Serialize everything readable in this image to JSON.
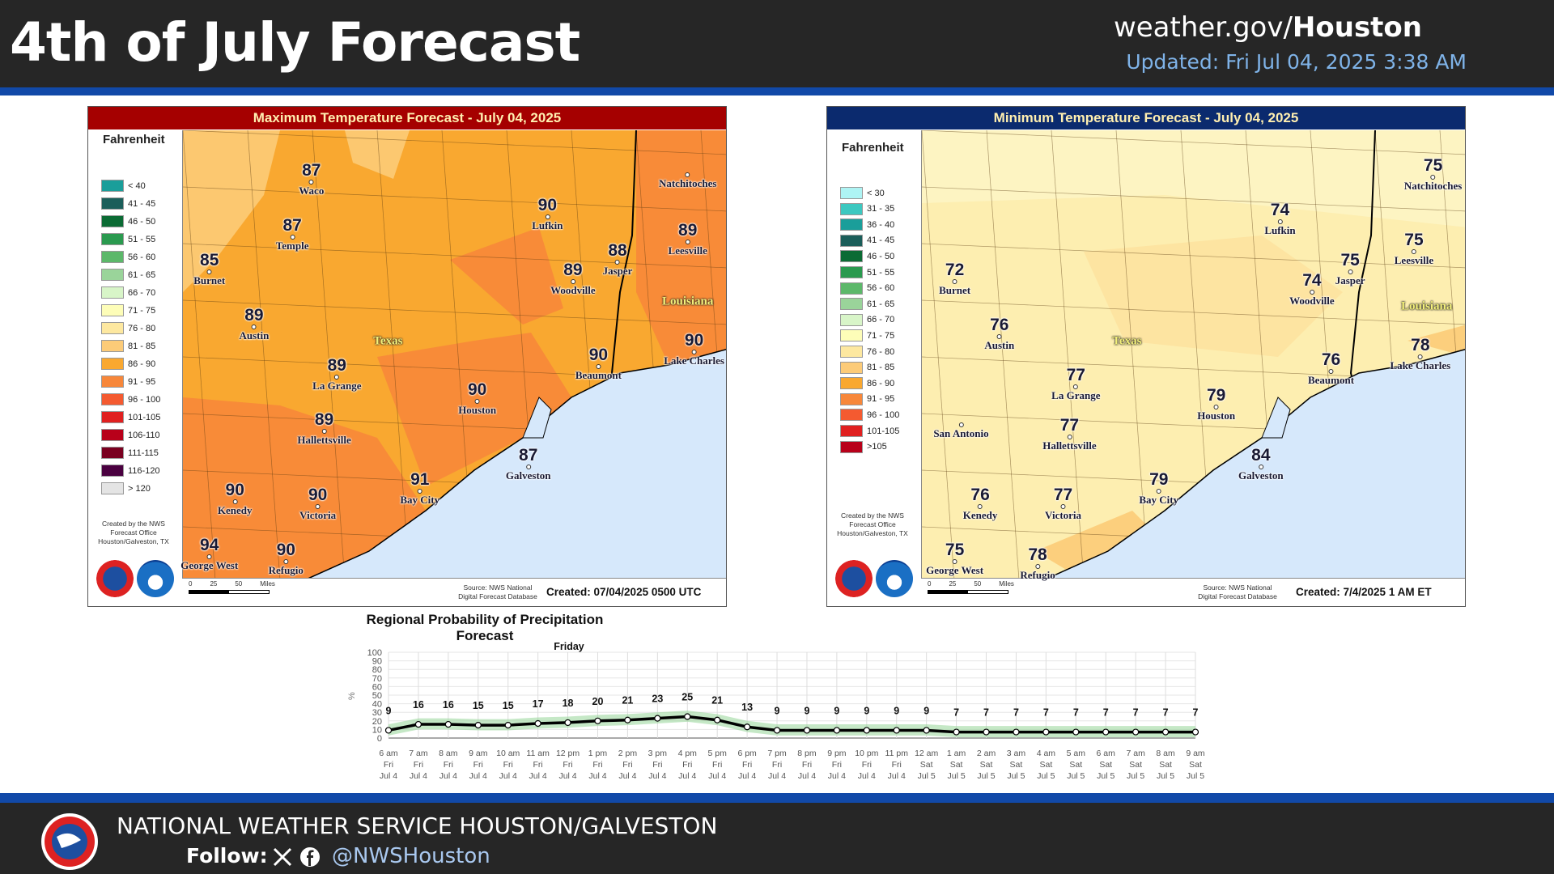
{
  "header": {
    "title": "4th of July Forecast",
    "site_prefix": "weather.gov/",
    "site_office": "Houston",
    "updated": "Updated: Fri Jul 04, 2025 3:38 AM"
  },
  "max_map": {
    "title": "Maximum Temperature Forecast - July 04, 2025",
    "header_color": "#a50000",
    "legend_title": "Fahrenheit",
    "legend": [
      [
        "< 40",
        "#1a9e9a"
      ],
      [
        "41 - 45",
        "#1b5e5a"
      ],
      [
        "46 - 50",
        "#0b6b34"
      ],
      [
        "51 - 55",
        "#2a9a4f"
      ],
      [
        "56 - 60",
        "#5cb86a"
      ],
      [
        "61 - 65",
        "#9ad49a"
      ],
      [
        "66 - 70",
        "#d8f5c8"
      ],
      [
        "71 - 75",
        "#fdfdb8"
      ],
      [
        "76 - 80",
        "#fde8a0"
      ],
      [
        "81 - 85",
        "#fccb78"
      ],
      [
        "86 - 90",
        "#f9a830"
      ],
      [
        "91 - 95",
        "#f7873a"
      ],
      [
        "96 - 100",
        "#f45a30"
      ],
      [
        "101-105",
        "#e02020"
      ],
      [
        "106-110",
        "#b8001a"
      ],
      [
        "111-115",
        "#7a0020"
      ],
      [
        "116-120",
        "#4a0040"
      ],
      [
        "> 120",
        "#e4e4e4"
      ]
    ],
    "credit": "Created by the NWS Forecast Office Houston/Galveston, TX",
    "cities": [
      [
        "Waco",
        "87"
      ],
      [
        "Temple",
        "87"
      ],
      [
        "Burnet",
        "85"
      ],
      [
        "Austin",
        "89"
      ],
      [
        "La Grange",
        "89"
      ],
      [
        "Hallettsville",
        "89"
      ],
      [
        "Kenedy",
        "90"
      ],
      [
        "Victoria",
        "90"
      ],
      [
        "George West",
        "94"
      ],
      [
        "Refugio",
        "90"
      ],
      [
        "Bay City",
        "91"
      ],
      [
        "Galveston",
        "87"
      ],
      [
        "Houston",
        "90"
      ],
      [
        "Beaumont",
        "90"
      ],
      [
        "Lake Charles",
        "90"
      ],
      [
        "Woodville",
        "89"
      ],
      [
        "Jasper",
        "88"
      ],
      [
        "Lufkin",
        "90"
      ],
      [
        "Leesville",
        "89"
      ],
      [
        "Natchitoches",
        ""
      ]
    ],
    "states": [
      "Texas",
      "Louisiana"
    ],
    "scale": [
      "0",
      "25",
      "50",
      "Miles"
    ],
    "source": "Source: NWS National Digital Forecast Database",
    "created": "Created: 07/04/2025 0500 UTC"
  },
  "min_map": {
    "title": "Minimum Temperature Forecast - July 04, 2025",
    "header_color": "#0b2a6e",
    "legend_title": "Fahrenheit",
    "legend": [
      [
        "< 30",
        "#aef4f4"
      ],
      [
        "31 - 35",
        "#3cc8c0"
      ],
      [
        "36 - 40",
        "#1a9e9a"
      ],
      [
        "41 - 45",
        "#1b5e5a"
      ],
      [
        "46 - 50",
        "#0b6b34"
      ],
      [
        "51 - 55",
        "#2a9a4f"
      ],
      [
        "56 - 60",
        "#5cb86a"
      ],
      [
        "61 - 65",
        "#9ad49a"
      ],
      [
        "66 - 70",
        "#d8f5c8"
      ],
      [
        "71 - 75",
        "#fdfdb8"
      ],
      [
        "76 - 80",
        "#fde8a0"
      ],
      [
        "81 - 85",
        "#fccb78"
      ],
      [
        "86 - 90",
        "#f9a830"
      ],
      [
        "91 - 95",
        "#f7873a"
      ],
      [
        "96 - 100",
        "#f45a30"
      ],
      [
        "101-105",
        "#e02020"
      ],
      [
        ">105",
        "#b8001a"
      ]
    ],
    "credit": "Created by the NWS Forecast Office Houston/Galveston, TX",
    "cities": [
      [
        "Natchitoches",
        "75"
      ],
      [
        "Lufkin",
        "74"
      ],
      [
        "Leesville",
        "75"
      ],
      [
        "Jasper",
        "75"
      ],
      [
        "Woodville",
        "74"
      ],
      [
        "Burnet",
        "72"
      ],
      [
        "Austin",
        "76"
      ],
      [
        "La Grange",
        "77"
      ],
      [
        "Hallettsville",
        "77"
      ],
      [
        "San Antonio",
        ""
      ],
      [
        "Houston",
        "79"
      ],
      [
        "Beaumont",
        "76"
      ],
      [
        "Lake Charles",
        "78"
      ],
      [
        "Galveston",
        "84"
      ],
      [
        "Bay City",
        "79"
      ],
      [
        "Kenedy",
        "76"
      ],
      [
        "Victoria",
        "77"
      ],
      [
        "George West",
        "75"
      ],
      [
        "Refugio",
        "78"
      ]
    ],
    "states": [
      "Texas",
      "Louisiana"
    ],
    "scale": [
      "0",
      "25",
      "50",
      "Miles"
    ],
    "source": "Source: NWS National Digital Forecast Database",
    "created": "Created: 7/4/2025 1 AM ET"
  },
  "chart_data": {
    "type": "line",
    "title": "Regional Probability of Precipitation Forecast",
    "day_label": "Friday",
    "ylabel": "%",
    "ylim": [
      0,
      100
    ],
    "yticks": [
      0,
      10,
      20,
      30,
      40,
      50,
      60,
      70,
      80,
      90,
      100
    ],
    "x": [
      [
        "6 am",
        "Fri",
        "Jul 4"
      ],
      [
        "7 am",
        "Fri",
        "Jul 4"
      ],
      [
        "8 am",
        "Fri",
        "Jul 4"
      ],
      [
        "9 am",
        "Fri",
        "Jul 4"
      ],
      [
        "10 am",
        "Fri",
        "Jul 4"
      ],
      [
        "11 am",
        "Fri",
        "Jul 4"
      ],
      [
        "12 pm",
        "Fri",
        "Jul 4"
      ],
      [
        "1 pm",
        "Fri",
        "Jul 4"
      ],
      [
        "2 pm",
        "Fri",
        "Jul 4"
      ],
      [
        "3 pm",
        "Fri",
        "Jul 4"
      ],
      [
        "4 pm",
        "Fri",
        "Jul 4"
      ],
      [
        "5 pm",
        "Fri",
        "Jul 4"
      ],
      [
        "6 pm",
        "Fri",
        "Jul 4"
      ],
      [
        "7 pm",
        "Fri",
        "Jul 4"
      ],
      [
        "8 pm",
        "Fri",
        "Jul 4"
      ],
      [
        "9 pm",
        "Fri",
        "Jul 4"
      ],
      [
        "10 pm",
        "Fri",
        "Jul 4"
      ],
      [
        "11 pm",
        "Fri",
        "Jul 4"
      ],
      [
        "12 am",
        "Sat",
        "Jul 5"
      ],
      [
        "1 am",
        "Sat",
        "Jul 5"
      ],
      [
        "2 am",
        "Sat",
        "Jul 5"
      ],
      [
        "3 am",
        "Sat",
        "Jul 5"
      ],
      [
        "4 am",
        "Sat",
        "Jul 5"
      ],
      [
        "5 am",
        "Sat",
        "Jul 5"
      ],
      [
        "6 am",
        "Sat",
        "Jul 5"
      ],
      [
        "7 am",
        "Sat",
        "Jul 5"
      ],
      [
        "8 am",
        "Sat",
        "Jul 5"
      ],
      [
        "9 am",
        "Sat",
        "Jul 5"
      ]
    ],
    "values": [
      9,
      16,
      16,
      15,
      15,
      17,
      18,
      20,
      21,
      23,
      25,
      21,
      13,
      9,
      9,
      9,
      9,
      9,
      9,
      7,
      7,
      7,
      7,
      7,
      7,
      7,
      7,
      7
    ],
    "series_color": "#000000",
    "band_color": "#9fd8a0"
  },
  "footer": {
    "org": "NATIONAL WEATHER SERVICE HOUSTON/GALVESTON",
    "follow": "Follow:",
    "handle": "@NWSHouston"
  }
}
